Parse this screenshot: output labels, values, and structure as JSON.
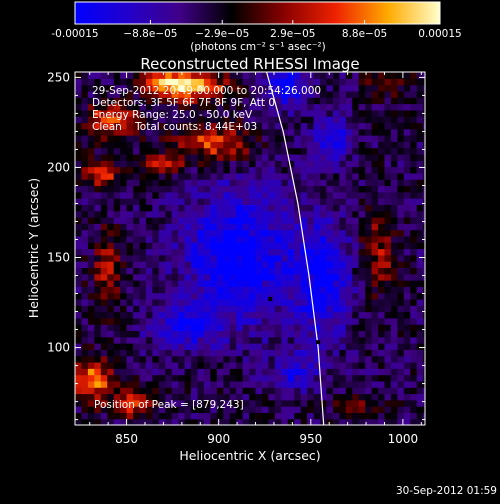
{
  "chart_data": {
    "type": "heatmap",
    "title": "Reconstructed RHESSI Image",
    "xlabel": "Heliocentric X (arcsec)",
    "ylabel": "Heliocentric Y (arcsec)",
    "xlim": [
      822,
      1012
    ],
    "ylim": [
      57,
      253
    ],
    "xticks": [
      850,
      900,
      950,
      1000
    ],
    "yticks": [
      100,
      150,
      200,
      250
    ],
    "colorbar": {
      "range": [
        -0.00015,
        0.00015
      ],
      "tick_values": [
        -0.00015,
        -8.8e-05,
        -2.9e-05,
        2.9e-05,
        8.8e-05,
        0.00015
      ],
      "tick_labels": [
        "-0.00015",
        "−8.8e−05",
        "−2.9e−05",
        "2.9e−05",
        "8.8e−05",
        "0.00015"
      ],
      "unit_label": "(photons cm⁻² s⁻¹ asec⁻²)",
      "colors": [
        "#0000ff",
        "#2200cc",
        "#400088",
        "#000000",
        "#880000",
        "#ee2200",
        "#ffaa00",
        "#ffffcc"
      ]
    },
    "annotations": [
      "29-Sep-2012 20:49:00.000 to 20:54:26.000",
      "Detectors: 3F 5F 6F 7F 8F 9F, Att 0",
      "Energy Range: 25.0 - 50.0 keV",
      "Clean    Total counts: 8.44E+03"
    ],
    "peak_label": "Position of Peak = [879,243]",
    "peak": [
      879,
      243
    ],
    "limb_curve": [
      [
        926,
        253
      ],
      [
        935,
        220
      ],
      [
        943,
        180
      ],
      [
        949,
        140
      ],
      [
        954,
        100
      ],
      [
        957,
        57
      ]
    ],
    "markers": [
      [
        928,
        127
      ],
      [
        954,
        103
      ]
    ],
    "hot_regions": [
      {
        "x": 884,
        "y": 243,
        "rx": 18,
        "ry": 8,
        "v": 0.00015
      },
      {
        "x": 870,
        "y": 246,
        "rx": 14,
        "ry": 6,
        "v": 0.00012
      },
      {
        "x": 840,
        "y": 224,
        "rx": 14,
        "ry": 10,
        "v": 0.00011
      },
      {
        "x": 895,
        "y": 212,
        "rx": 22,
        "ry": 10,
        "v": 0.0001
      },
      {
        "x": 835,
        "y": 195,
        "rx": 10,
        "ry": 8,
        "v": 9e-05
      },
      {
        "x": 866,
        "y": 200,
        "rx": 12,
        "ry": 6,
        "v": 8e-05
      },
      {
        "x": 838,
        "y": 140,
        "rx": 8,
        "ry": 22,
        "v": 8e-05
      },
      {
        "x": 830,
        "y": 80,
        "rx": 10,
        "ry": 12,
        "v": 0.00013
      },
      {
        "x": 852,
        "y": 68,
        "rx": 10,
        "ry": 8,
        "v": 0.0001
      },
      {
        "x": 985,
        "y": 150,
        "rx": 10,
        "ry": 22,
        "v": 7e-05
      },
      {
        "x": 990,
        "y": 245,
        "rx": 12,
        "ry": 8,
        "v": 5e-05
      },
      {
        "x": 975,
        "y": 65,
        "rx": 14,
        "ry": 8,
        "v": 5e-05
      }
    ],
    "cold_regions": [
      {
        "x": 910,
        "y": 150,
        "rx": 30,
        "ry": 35,
        "v": -0.00012
      },
      {
        "x": 955,
        "y": 135,
        "rx": 14,
        "ry": 30,
        "v": -0.0001
      },
      {
        "x": 935,
        "y": 245,
        "rx": 10,
        "ry": 12,
        "v": -0.00012
      },
      {
        "x": 880,
        "y": 110,
        "rx": 18,
        "ry": 12,
        "v": -8e-05
      },
      {
        "x": 940,
        "y": 85,
        "rx": 12,
        "ry": 10,
        "v": -7e-05
      },
      {
        "x": 960,
        "y": 215,
        "rx": 10,
        "ry": 12,
        "v": -9e-05
      }
    ]
  },
  "footer": {
    "timestamp": "30-Sep-2012 01:59"
  }
}
